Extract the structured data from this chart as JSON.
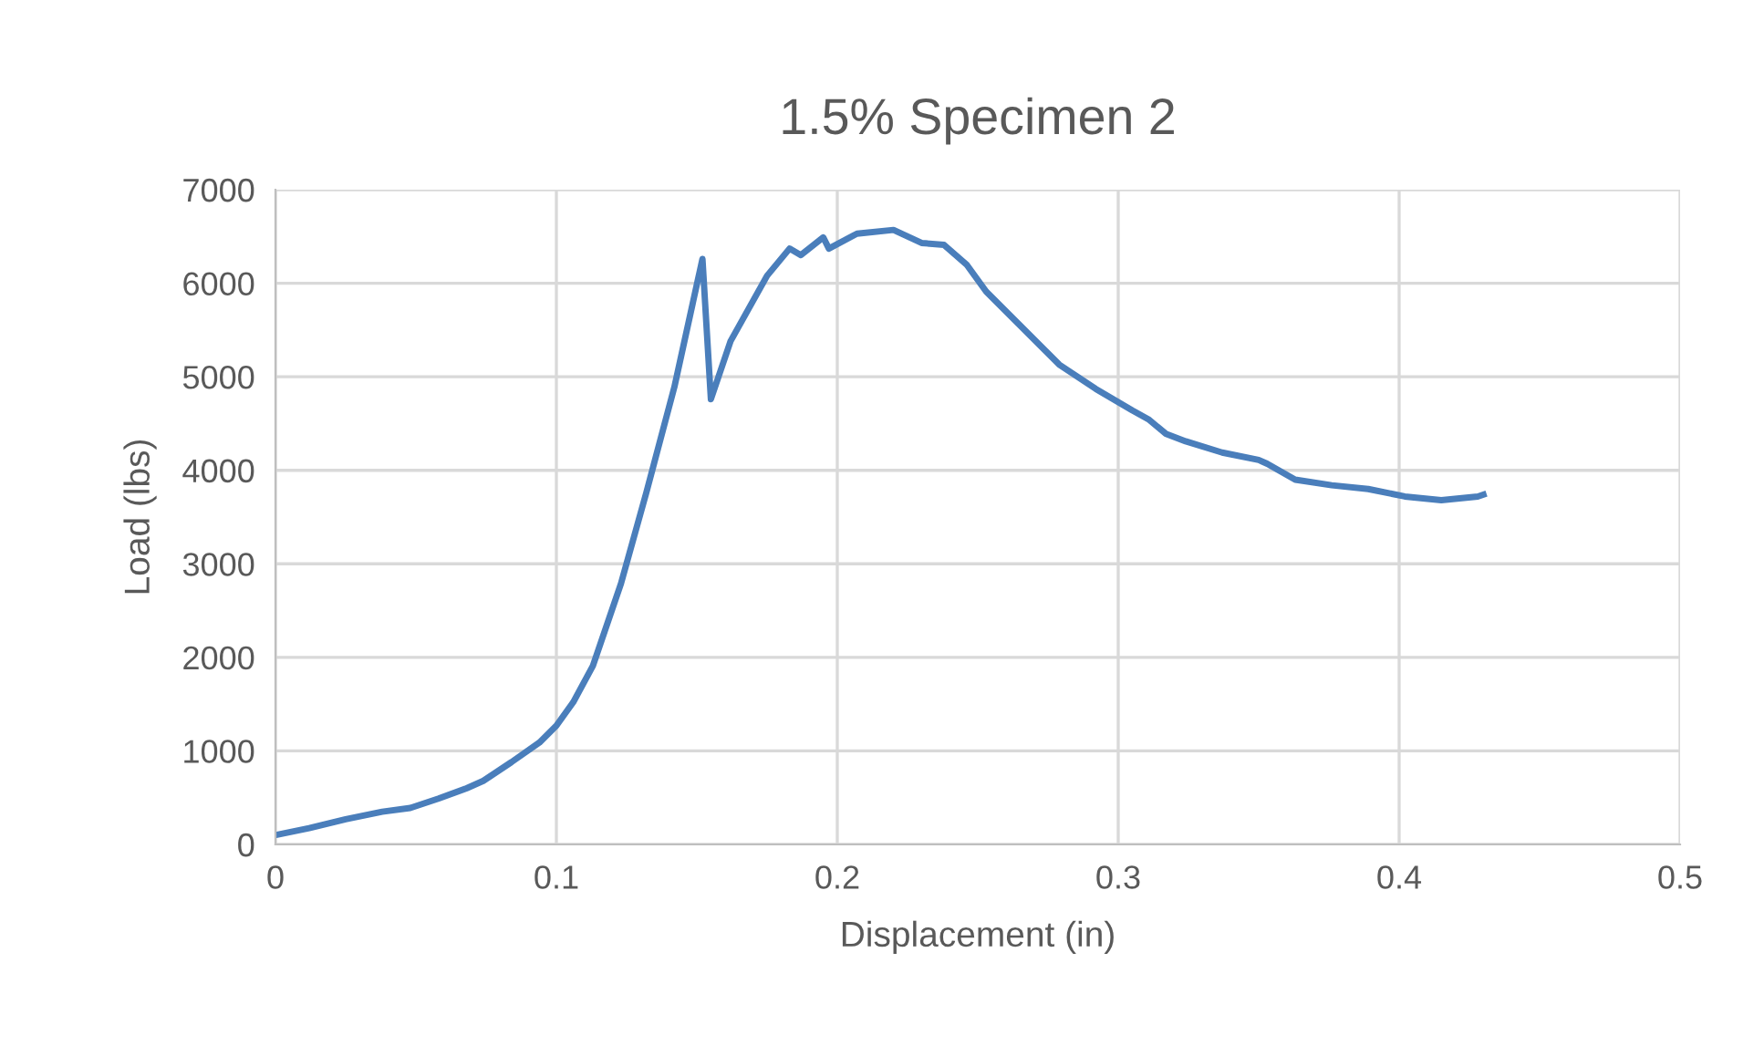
{
  "chart_data": {
    "type": "line",
    "title": "1.5% Specimen 2",
    "xlabel": "Displacement (in)",
    "ylabel": "Load (lbs)",
    "xlim": [
      0,
      0.5
    ],
    "xticks": [
      0,
      0.1,
      0.2,
      0.3,
      0.4,
      0.5
    ],
    "ylim": [
      0,
      7000
    ],
    "yticks": [
      0,
      1000,
      2000,
      3000,
      4000,
      5000,
      6000,
      7000
    ],
    "grid": true,
    "marker": "none",
    "line_style": "solid",
    "series": [
      {
        "color": "#4a7ebb",
        "x": [
          0,
          0.012,
          0.025,
          0.038,
          0.048,
          0.058,
          0.068,
          0.074,
          0.084,
          0.094,
          0.1,
          0.106,
          0.113,
          0.123,
          0.132,
          0.142,
          0.152,
          0.155,
          0.162,
          0.175,
          0.183,
          0.187,
          0.195,
          0.197,
          0.207,
          0.22,
          0.23,
          0.238,
          0.246,
          0.253,
          0.266,
          0.279,
          0.292,
          0.305,
          0.311,
          0.317,
          0.324,
          0.337,
          0.35,
          0.353,
          0.363,
          0.376,
          0.389,
          0.402,
          0.415,
          0.428,
          0.43
        ],
        "values": [
          100,
          175,
          270,
          350,
          390,
          490,
          600,
          680,
          880,
          1090,
          1270,
          1520,
          1910,
          2790,
          3760,
          4890,
          6260,
          4760,
          5380,
          6080,
          6370,
          6300,
          6490,
          6370,
          6530,
          6570,
          6430,
          6410,
          6200,
          5910,
          5520,
          5130,
          4870,
          4640,
          4540,
          4390,
          4310,
          4190,
          4110,
          4070,
          3900,
          3840,
          3800,
          3720,
          3680,
          3720,
          3740
        ]
      }
    ]
  }
}
